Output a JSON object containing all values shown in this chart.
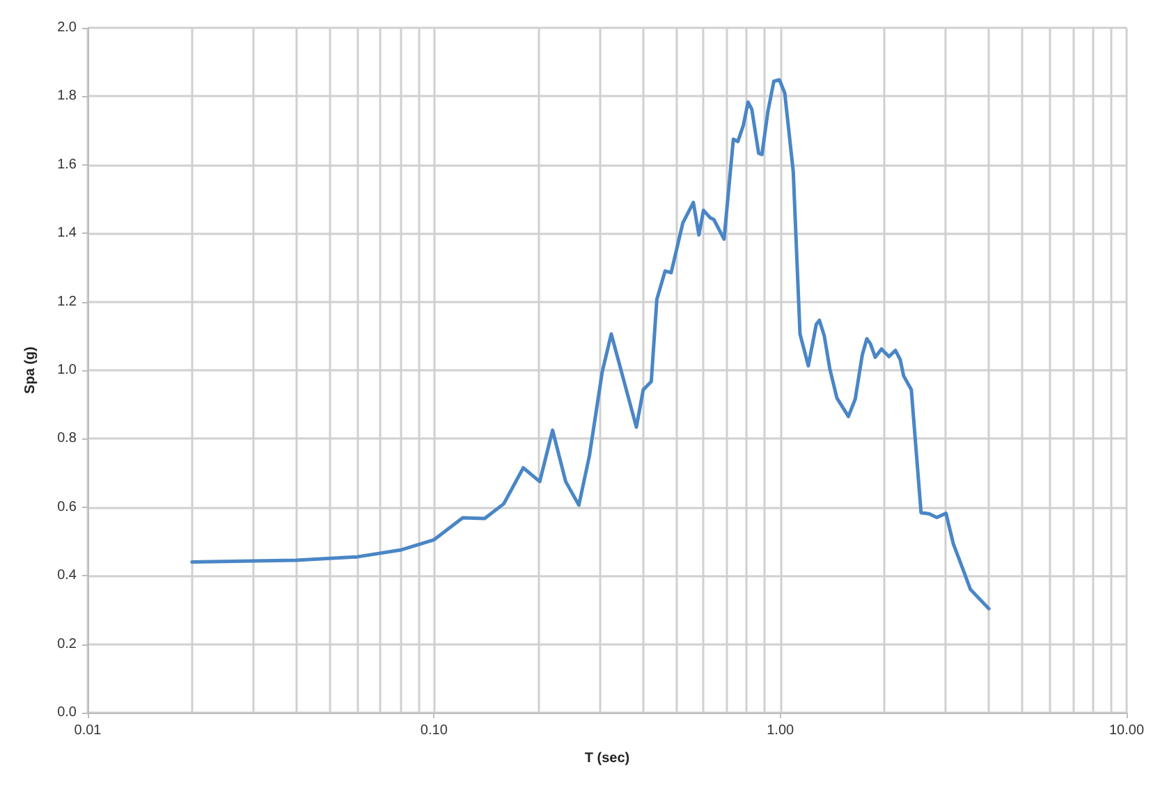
{
  "chart_data": {
    "type": "line",
    "xlabel": "T (sec)",
    "ylabel": "Spa (g)",
    "log": "x",
    "grid": true,
    "marker": "none",
    "line_style": "solid",
    "xlim": [
      0.01,
      10
    ],
    "xticks": [
      {
        "value": 0.01,
        "label": "0.01"
      },
      {
        "value": 0.1,
        "label": "0.10"
      },
      {
        "value": 1,
        "label": "1.00"
      },
      {
        "value": 10,
        "label": "10.00"
      }
    ],
    "ylim": [
      0,
      2
    ],
    "yticks": [
      {
        "value": 0,
        "label": "0.0"
      },
      {
        "value": 0.2,
        "label": "0.2"
      },
      {
        "value": 0.4,
        "label": "0.4"
      },
      {
        "value": 0.6,
        "label": "0.6"
      },
      {
        "value": 0.8,
        "label": "0.8"
      },
      {
        "value": 1,
        "label": "1.0"
      },
      {
        "value": 1.2,
        "label": "1.2"
      },
      {
        "value": 1.4,
        "label": "1.4"
      },
      {
        "value": 1.6,
        "label": "1.6"
      },
      {
        "value": 1.8,
        "label": "1.8"
      },
      {
        "value": 2,
        "label": "2.0"
      }
    ],
    "series": [
      {
        "color": "#4a86c6",
        "x": [
          0.02,
          0.04,
          0.06,
          0.08,
          0.1,
          0.121,
          0.14,
          0.159,
          0.181,
          0.202,
          0.22,
          0.24,
          0.262,
          0.281,
          0.306,
          0.325,
          0.362,
          0.384,
          0.402,
          0.424,
          0.44,
          0.465,
          0.484,
          0.523,
          0.561,
          0.582,
          0.6,
          0.628,
          0.643,
          0.688,
          0.732,
          0.754,
          0.782,
          0.807,
          0.827,
          0.866,
          0.885,
          0.921,
          0.958,
          0.994,
          1.03,
          1.09,
          1.14,
          1.205,
          1.27,
          1.297,
          1.34,
          1.39,
          1.457,
          1.573,
          1.646,
          1.725,
          1.778,
          1.82,
          1.88,
          1.96,
          2.06,
          2.15,
          2.22,
          2.27,
          2.39,
          2.55,
          2.69,
          2.83,
          3.01,
          3.16,
          3.38,
          3.54,
          4.0
        ],
        "values": [
          0.44,
          0.445,
          0.455,
          0.475,
          0.505,
          0.569,
          0.567,
          0.61,
          0.715,
          0.675,
          0.825,
          0.675,
          0.606,
          0.75,
          0.995,
          1.106,
          0.93,
          0.834,
          0.943,
          0.967,
          1.207,
          1.29,
          1.285,
          1.43,
          1.49,
          1.395,
          1.467,
          1.445,
          1.44,
          1.383,
          1.675,
          1.668,
          1.715,
          1.783,
          1.763,
          1.634,
          1.63,
          1.756,
          1.844,
          1.848,
          1.81,
          1.58,
          1.106,
          1.013,
          1.134,
          1.146,
          1.1,
          1.004,
          0.919,
          0.865,
          0.916,
          1.045,
          1.092,
          1.078,
          1.038,
          1.062,
          1.04,
          1.058,
          1.031,
          0.984,
          0.943,
          0.584,
          0.581,
          0.57,
          0.582,
          0.493,
          0.415,
          0.36,
          0.304
        ]
      }
    ]
  }
}
